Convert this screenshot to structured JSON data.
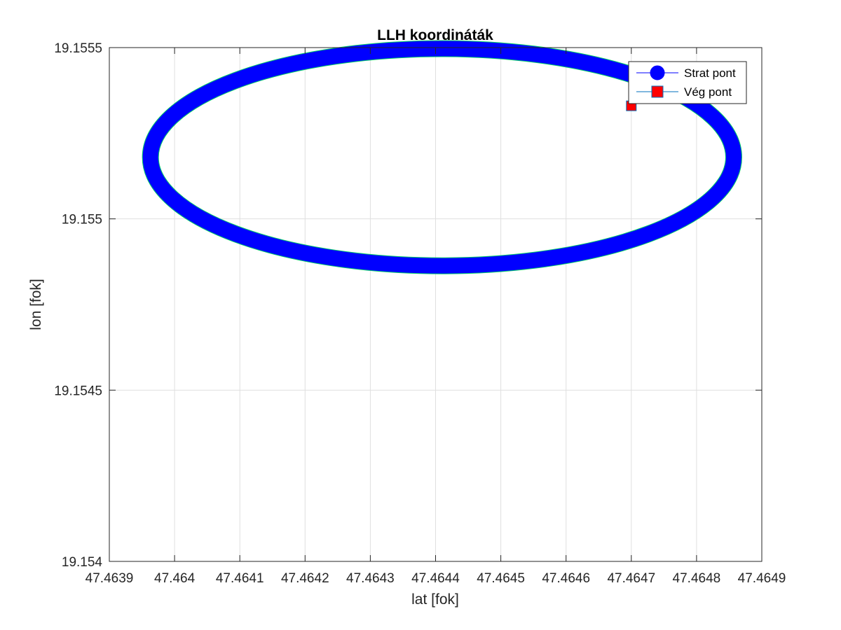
{
  "chart_data": {
    "type": "line",
    "title": "LLH koordináták",
    "xlabel": "lat [fok]",
    "ylabel": "lon [fok]",
    "xlim": [
      47.4639,
      47.4649
    ],
    "ylim": [
      19.154,
      19.1555
    ],
    "x_ticks": [
      "47.4639",
      "47.464",
      "47.4641",
      "47.4642",
      "47.4643",
      "47.4644",
      "47.4645",
      "47.4646",
      "47.4647",
      "47.4648",
      "47.4649"
    ],
    "y_ticks": [
      "19.154",
      "19.1545",
      "19.155",
      "19.1555"
    ],
    "grid": true,
    "legend_position": "top-right",
    "series": [
      {
        "name": "Strat pont",
        "color": "#0000ff",
        "marker": "circle",
        "shape": "closed ellipse traced by dense circle markers",
        "center": {
          "x": 47.46441,
          "y": 19.15518
        },
        "semi_axis_x": 0.000447,
        "semi_axis_y": 0.000317
      },
      {
        "name": "Vég pont",
        "color": "#ff0000",
        "marker": "square",
        "points": [
          {
            "x": 47.4647,
            "y": 19.15533
          }
        ]
      }
    ]
  }
}
